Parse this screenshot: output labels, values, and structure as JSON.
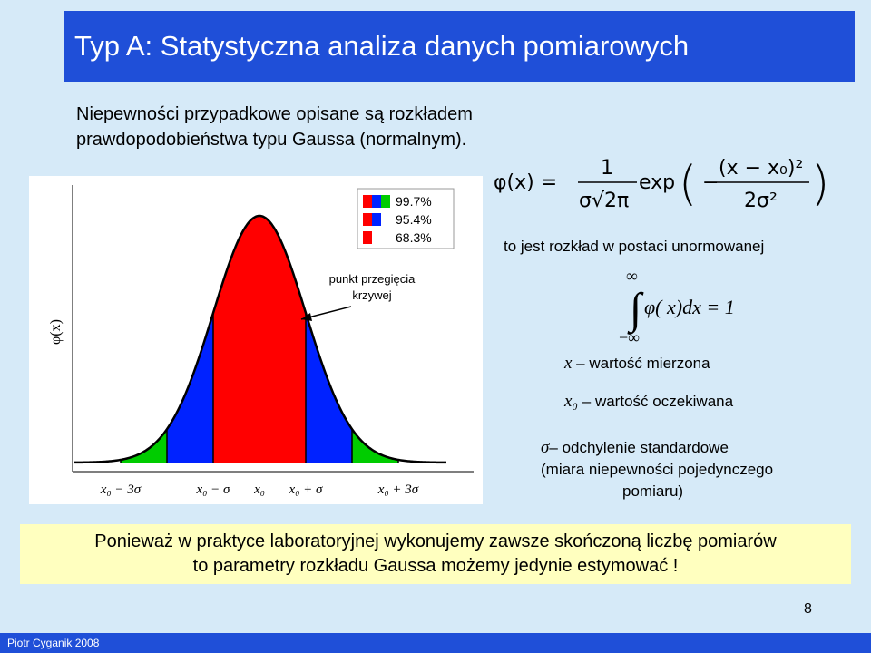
{
  "title": "Typ A: Statystyczna analiza danych pomiarowych",
  "intro": "Niepewności przypadkowe opisane są rozkładem prawdopodobieństwa typu Gaussa (normalnym).",
  "figure": {
    "ylabel": "φ(x)",
    "annotation": "punkt przegięcia krzywej",
    "legend": [
      "99.7%",
      "95.4%",
      "68.3%"
    ],
    "xticks": [
      "x₀ − 3σ",
      "x₀ − σ",
      "x₀",
      "x₀ + σ",
      "x₀ + 3σ"
    ],
    "colors": {
      "inner": "#ff0000",
      "middle": "#0022ff",
      "outer": "#00cc00"
    }
  },
  "formula": {
    "lhs": "φ(x) =",
    "numerator": "1",
    "denominator": "σ√2π",
    "exp": "exp",
    "exp_numerator": "(x − x₀)²",
    "exp_denominator": "2σ²"
  },
  "subtitle": "to jest rozkład w postaci unormowanej",
  "integral": {
    "upper": "∞",
    "lower": "−∞",
    "body": "φ( x)dx = 1"
  },
  "definitions": [
    {
      "symbol": "x",
      "text": "wartość mierzona"
    },
    {
      "symbol": "x₀",
      "text": "wartość oczekiwana"
    },
    {
      "symbol": "σ",
      "text": "odchylenie standardowe",
      "text2": "(miara niepewności pojedynczego",
      "text3": "pomiaru)"
    }
  ],
  "bottom": {
    "line1": "Ponieważ w praktyce laboratoryjnej wykonujemy zawsze skończoną liczbę pomiarów",
    "line2": "to parametry rozkładu Gaussa możemy jedynie estymować !"
  },
  "page_number": "8",
  "footer": "Piotr Cyganik 2008"
}
